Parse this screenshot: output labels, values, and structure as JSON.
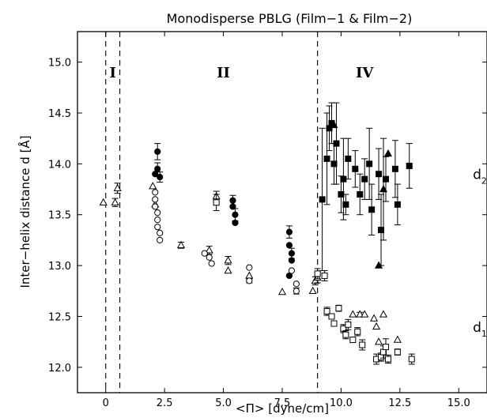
{
  "chart_data": {
    "type": "scatter",
    "title": "Monodisperse PBLG (Film−1 & Film−2)",
    "xlabel": "<Π> [dyne/cm]",
    "ylabel": "Inter−helix distance d [Å]",
    "xlim": [
      -1.2,
      16.2
    ],
    "ylim": [
      11.75,
      15.3
    ],
    "xticks": [
      0,
      2.5,
      5.0,
      7.5,
      10.0,
      12.5,
      15.0
    ],
    "xtick_labels": [
      "0",
      "2.5",
      "5.0",
      "7.5",
      "10.0",
      "12.5",
      "15.0"
    ],
    "yticks": [
      12.0,
      12.5,
      13.0,
      13.5,
      14.0,
      14.5,
      15.0
    ],
    "ytick_labels": [
      "12.0",
      "12.5",
      "13.0",
      "13.5",
      "14.0",
      "14.5",
      "15.0"
    ],
    "grid": false,
    "region_boundaries": [
      0,
      0.6,
      9.0
    ],
    "regions": [
      {
        "label": "I",
        "x": 0.3,
        "y": 14.85
      },
      {
        "label": "II",
        "x": 5.0,
        "y": 14.85
      },
      {
        "label": "IV",
        "x": 11.0,
        "y": 14.85
      }
    ],
    "series_labels": [
      {
        "main": "d",
        "sub": "2",
        "x": 15.6,
        "y": 13.85
      },
      {
        "main": "d",
        "sub": "1",
        "x": 15.6,
        "y": 12.35
      }
    ],
    "series": [
      {
        "marker": "open-triangle",
        "points": [
          [
            -0.1,
            13.62,
            0
          ],
          [
            0.4,
            13.62,
            0.04
          ],
          [
            0.5,
            13.76,
            0.05
          ],
          [
            2.0,
            13.78,
            0
          ],
          [
            2.1,
            13.6,
            0
          ],
          [
            3.2,
            13.2,
            0.03
          ],
          [
            4.4,
            13.15,
            0.04
          ],
          [
            4.7,
            13.68,
            0.05
          ],
          [
            5.2,
            13.05,
            0.04
          ],
          [
            5.2,
            12.95,
            0
          ],
          [
            6.1,
            12.9,
            0
          ],
          [
            7.5,
            12.74,
            0
          ],
          [
            8.8,
            12.75,
            0
          ],
          [
            8.9,
            12.85,
            0.04
          ],
          [
            9.0,
            12.88,
            0.05
          ],
          [
            10.5,
            12.52,
            0
          ],
          [
            10.8,
            12.52,
            0.02
          ],
          [
            11.0,
            12.52,
            0
          ],
          [
            11.4,
            12.48,
            0
          ],
          [
            11.5,
            12.4,
            0
          ],
          [
            11.8,
            12.52,
            0
          ],
          [
            12.4,
            12.27,
            0
          ],
          [
            11.6,
            12.25,
            0
          ]
        ]
      },
      {
        "marker": "filled-circle",
        "points": [
          [
            2.2,
            14.12,
            0.08
          ],
          [
            2.2,
            13.95,
            0.06
          ],
          [
            2.3,
            13.87,
            0.05
          ],
          [
            2.1,
            13.9,
            0
          ],
          [
            5.4,
            13.64,
            0.05
          ],
          [
            5.4,
            13.58,
            0
          ],
          [
            5.5,
            13.5,
            0.06
          ],
          [
            5.5,
            13.42,
            0
          ],
          [
            7.8,
            13.33,
            0.06
          ],
          [
            7.8,
            13.2,
            0
          ],
          [
            7.9,
            13.12,
            0.05
          ],
          [
            7.9,
            13.05,
            0
          ],
          [
            7.8,
            12.9,
            0
          ]
        ]
      },
      {
        "marker": "open-circle",
        "points": [
          [
            2.1,
            13.72,
            0
          ],
          [
            2.1,
            13.65,
            0
          ],
          [
            2.1,
            13.58,
            0
          ],
          [
            2.2,
            13.52,
            0
          ],
          [
            2.2,
            13.45,
            0
          ],
          [
            2.2,
            13.38,
            0
          ],
          [
            2.3,
            13.32,
            0
          ],
          [
            2.3,
            13.25,
            0
          ],
          [
            4.4,
            13.08,
            0
          ],
          [
            4.5,
            13.02,
            0
          ],
          [
            4.2,
            13.12,
            0
          ],
          [
            6.1,
            12.98,
            0
          ],
          [
            6.1,
            12.85,
            0.02
          ],
          [
            7.9,
            12.95,
            0
          ],
          [
            8.1,
            12.82,
            0
          ],
          [
            8.1,
            12.75,
            0.03
          ]
        ]
      },
      {
        "marker": "open-square",
        "points": [
          [
            4.7,
            13.62,
            0.08
          ],
          [
            9.0,
            12.92,
            0.05
          ],
          [
            9.3,
            12.9,
            0.05
          ],
          [
            9.4,
            12.55,
            0.04
          ],
          [
            9.6,
            12.5,
            0
          ],
          [
            9.7,
            12.43,
            0
          ],
          [
            9.9,
            12.58,
            0.03
          ],
          [
            10.1,
            12.38,
            0.04
          ],
          [
            10.2,
            12.32,
            0.04
          ],
          [
            10.3,
            12.42,
            0.05
          ],
          [
            10.5,
            12.27,
            0
          ],
          [
            10.7,
            12.35,
            0.04
          ],
          [
            10.9,
            12.22,
            0.05
          ],
          [
            11.5,
            12.08,
            0.05
          ],
          [
            11.7,
            12.1,
            0.04
          ],
          [
            11.8,
            12.15,
            0.06
          ],
          [
            11.9,
            12.2,
            0.08
          ],
          [
            12.0,
            12.08,
            0.04
          ],
          [
            12.4,
            12.15,
            0.03
          ],
          [
            13.0,
            12.08,
            0.05
          ]
        ]
      },
      {
        "marker": "filled-square",
        "points": [
          [
            9.2,
            13.65,
            0.7
          ],
          [
            9.4,
            14.05,
            0.45
          ],
          [
            9.5,
            14.35,
            0.22
          ],
          [
            9.6,
            14.4,
            0.2
          ],
          [
            9.8,
            14.2,
            0.4
          ],
          [
            9.7,
            14.0,
            0.2
          ],
          [
            10.0,
            13.7,
            0.18
          ],
          [
            10.1,
            13.85,
            0.4
          ],
          [
            10.3,
            14.05,
            0.2
          ],
          [
            10.2,
            13.6,
            0.1
          ],
          [
            10.6,
            13.95,
            0.18
          ],
          [
            10.8,
            13.7,
            0.2
          ],
          [
            11.0,
            13.85,
            0.2
          ],
          [
            11.2,
            14.0,
            0.35
          ],
          [
            11.3,
            13.55,
            0.25
          ],
          [
            11.6,
            13.9,
            0.25
          ],
          [
            11.7,
            13.35,
            0.35
          ],
          [
            11.9,
            13.85,
            0.22
          ],
          [
            12.3,
            13.95,
            0.28
          ],
          [
            12.4,
            13.6,
            0.2
          ],
          [
            12.9,
            13.98,
            0.22
          ]
        ]
      },
      {
        "marker": "filled-triangle",
        "points": [
          [
            9.7,
            14.38,
            0
          ],
          [
            11.8,
            13.75,
            0.5
          ],
          [
            12.0,
            14.1,
            0
          ],
          [
            11.6,
            13.0,
            0
          ]
        ]
      }
    ]
  }
}
